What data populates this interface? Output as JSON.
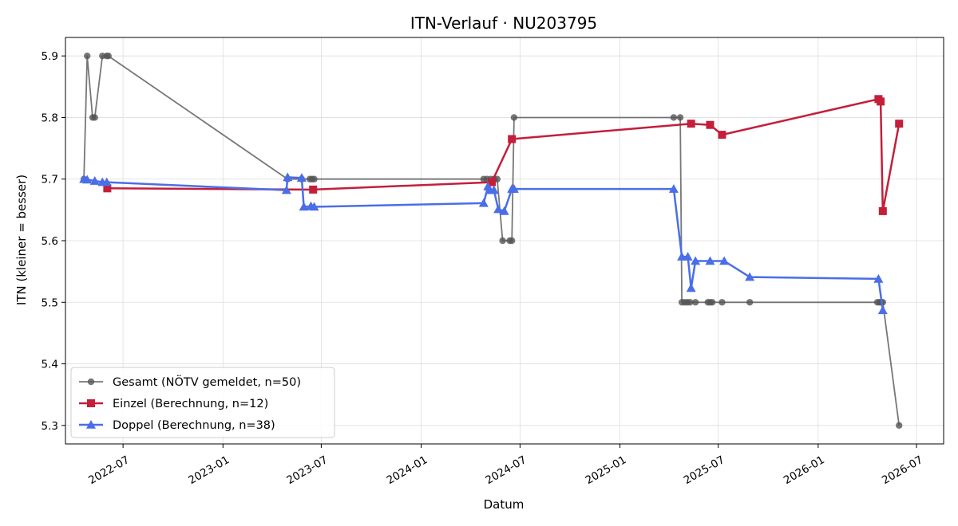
{
  "chart_data": {
    "type": "line",
    "title": "ITN-Verlauf · NU203795",
    "xlabel": "Datum",
    "ylabel": "ITN  (kleiner = besser)",
    "xlim": [
      "2022-03-17",
      "2026-08-20"
    ],
    "ylim": [
      5.27,
      5.93
    ],
    "xticks": [
      "2022-07-01",
      "2023-01-01",
      "2023-07-01",
      "2024-01-01",
      "2024-07-01",
      "2025-01-01",
      "2025-07-01",
      "2026-01-01",
      "2026-07-01"
    ],
    "xtick_labels": [
      "2022-07",
      "2023-01",
      "2023-07",
      "2024-01",
      "2024-07",
      "2025-01",
      "2025-07",
      "2026-01",
      "2026-07"
    ],
    "yticks": [
      5.3,
      5.4,
      5.5,
      5.6,
      5.7,
      5.8,
      5.9
    ],
    "ytick_labels": [
      "5.3",
      "5.4",
      "5.5",
      "5.6",
      "5.7",
      "5.8",
      "5.9"
    ],
    "grid": true,
    "legend_position": "lower-left",
    "series": [
      {
        "name": "Gesamt (NÖTV gemeldet, n=50)",
        "color": "#555555",
        "marker": "circle",
        "points": [
          [
            "2022-04-20",
            5.7
          ],
          [
            "2022-04-26",
            5.9
          ],
          [
            "2022-05-06",
            5.8
          ],
          [
            "2022-05-10",
            5.8
          ],
          [
            "2022-05-24",
            5.9
          ],
          [
            "2022-06-01",
            5.9
          ],
          [
            "2022-06-04",
            5.9
          ],
          [
            "2023-04-30",
            5.7
          ],
          [
            "2023-05-26",
            5.7
          ],
          [
            "2023-06-10",
            5.7
          ],
          [
            "2023-06-14",
            5.7
          ],
          [
            "2023-06-18",
            5.7
          ],
          [
            "2024-04-25",
            5.7
          ],
          [
            "2024-05-01",
            5.7
          ],
          [
            "2024-05-08",
            5.7
          ],
          [
            "2024-05-14",
            5.7
          ],
          [
            "2024-05-20",
            5.7
          ],
          [
            "2024-05-30",
            5.6
          ],
          [
            "2024-06-12",
            5.6
          ],
          [
            "2024-06-16",
            5.6
          ],
          [
            "2024-06-20",
            5.8
          ],
          [
            "2025-04-10",
            5.8
          ],
          [
            "2025-04-22",
            5.8
          ],
          [
            "2025-04-25",
            5.5
          ],
          [
            "2025-04-30",
            5.5
          ],
          [
            "2025-05-05",
            5.5
          ],
          [
            "2025-05-10",
            5.5
          ],
          [
            "2025-05-20",
            5.5
          ],
          [
            "2025-06-12",
            5.5
          ],
          [
            "2025-06-16",
            5.5
          ],
          [
            "2025-06-20",
            5.5
          ],
          [
            "2025-07-08",
            5.5
          ],
          [
            "2025-08-28",
            5.5
          ],
          [
            "2026-04-20",
            5.5
          ],
          [
            "2026-04-24",
            5.5
          ],
          [
            "2026-04-27",
            5.5
          ],
          [
            "2026-04-30",
            5.5
          ],
          [
            "2026-05-30",
            5.3
          ]
        ]
      },
      {
        "name": "Einzel (Berechnung, n=12)",
        "color": "#c41e3a",
        "marker": "square",
        "points": [
          [
            "2022-06-02",
            5.685
          ],
          [
            "2023-06-16",
            5.683
          ],
          [
            "2024-05-10",
            5.695
          ],
          [
            "2024-06-16",
            5.765
          ],
          [
            "2025-05-12",
            5.79
          ],
          [
            "2025-06-16",
            5.788
          ],
          [
            "2025-07-08",
            5.772
          ],
          [
            "2026-04-22",
            5.83
          ],
          [
            "2026-04-26",
            5.826
          ],
          [
            "2026-04-30",
            5.648
          ],
          [
            "2026-05-30",
            5.79
          ]
        ]
      },
      {
        "name": "Doppel (Berechnung, n=38)",
        "color": "#4a6ee8",
        "marker": "triangle",
        "points": [
          [
            "2022-04-20",
            5.7
          ],
          [
            "2022-04-26",
            5.699
          ],
          [
            "2022-05-10",
            5.697
          ],
          [
            "2022-05-24",
            5.695
          ],
          [
            "2022-06-01",
            5.695
          ],
          [
            "2023-04-28",
            5.682
          ],
          [
            "2023-04-30",
            5.703
          ],
          [
            "2023-05-26",
            5.702
          ],
          [
            "2023-05-30",
            5.655
          ],
          [
            "2023-06-12",
            5.656
          ],
          [
            "2023-06-18",
            5.655
          ],
          [
            "2024-04-25",
            5.661
          ],
          [
            "2024-05-03",
            5.688
          ],
          [
            "2024-05-06",
            5.682
          ],
          [
            "2024-05-14",
            5.682
          ],
          [
            "2024-05-22",
            5.651
          ],
          [
            "2024-06-02",
            5.648
          ],
          [
            "2024-06-16",
            5.684
          ],
          [
            "2024-06-20",
            5.684
          ],
          [
            "2025-04-10",
            5.684
          ],
          [
            "2025-04-25",
            5.574
          ],
          [
            "2025-05-06",
            5.574
          ],
          [
            "2025-05-12",
            5.523
          ],
          [
            "2025-05-20",
            5.567
          ],
          [
            "2025-06-16",
            5.567
          ],
          [
            "2025-07-12",
            5.567
          ],
          [
            "2025-08-28",
            5.541
          ],
          [
            "2026-04-22",
            5.538
          ],
          [
            "2026-04-30",
            5.487
          ]
        ]
      }
    ]
  }
}
